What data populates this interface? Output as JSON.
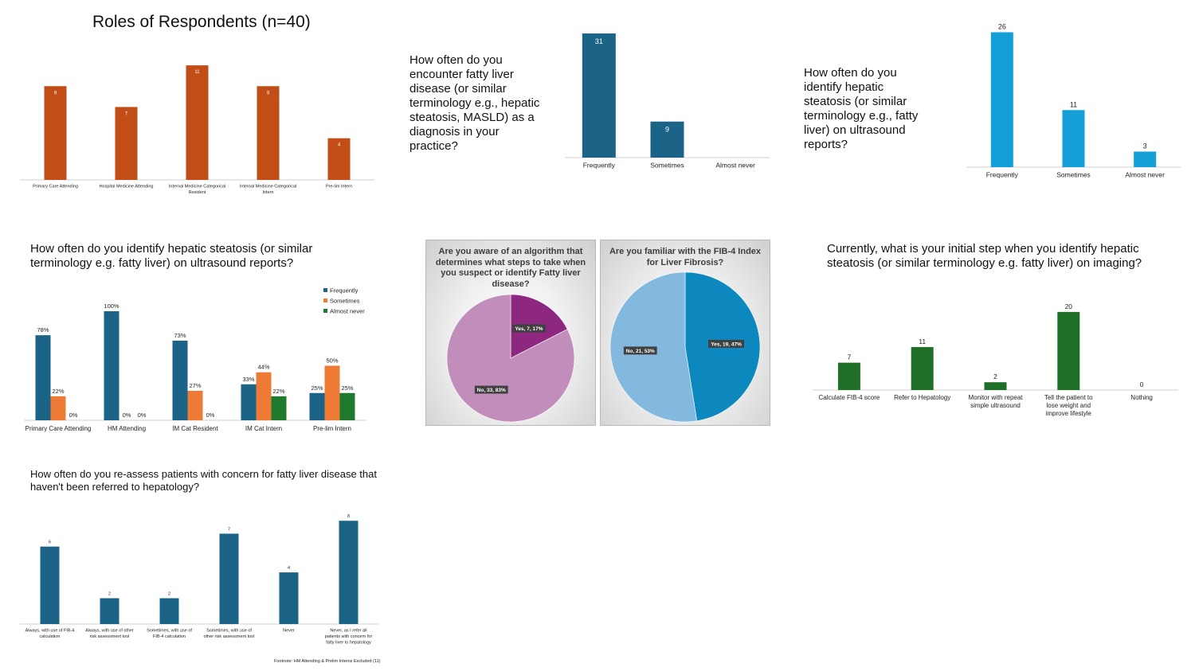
{
  "charts": {
    "roles": {
      "title": "Roles of Respondents (n=40)",
      "chart_data": {
        "type": "bar",
        "title": "Roles of Respondents (n=40)",
        "categories": [
          "Primary Care Attending",
          "Hospital Medicine Attending",
          "Internal Medicine Categorical Resident",
          "Internal Medicine Categorical Intern",
          "Pre-lim Intern"
        ],
        "values": [
          9,
          7,
          11,
          9,
          4
        ],
        "color": "#C24E17",
        "ylim": [
          0,
          12
        ],
        "grid": false
      }
    },
    "encounter": {
      "title": "How often do you encounter fatty liver disease (or similar terminology e.g., hepatic steatosis, MASLD) as a diagnosis in your practice?",
      "chart_data": {
        "type": "bar",
        "categories": [
          "Frequently",
          "Sometimes",
          "Almost never"
        ],
        "values": [
          31,
          9,
          0
        ],
        "color": "#1B6387",
        "ylim": [
          0,
          32
        ],
        "grid": false
      }
    },
    "identify": {
      "title": "How often do you identify hepatic steatosis (or similar terminology e.g., fatty liver) on ultrasound reports?",
      "chart_data": {
        "type": "bar",
        "categories": [
          "Frequently",
          "Sometimes",
          "Almost never"
        ],
        "values": [
          26,
          11,
          3
        ],
        "color": "#159FD7",
        "ylim": [
          0,
          27
        ],
        "grid": false
      }
    },
    "grouped": {
      "title": "How often do you identify hepatic steatosis (or similar terminology e.g. fatty liver) on ultrasound reports?",
      "chart_data": {
        "type": "bar",
        "categories": [
          "Primary Care Attending",
          "HM Attending",
          "IM Cat Resident",
          "IM Cat Intern",
          "Pre-lim Intern"
        ],
        "series": [
          {
            "name": "Frequently",
            "values": [
              78,
              100,
              73,
              33,
              25
            ],
            "color": "#1B6387"
          },
          {
            "name": "Sometimes",
            "values": [
              22,
              0,
              27,
              44,
              50
            ],
            "color": "#EE7B35"
          },
          {
            "name": "Almost never",
            "values": [
              0,
              0,
              0,
              22,
              25
            ],
            "color": "#1F7A2D"
          }
        ],
        "unit": "%",
        "ylim": [
          0,
          105
        ],
        "legend": "top-right",
        "grid": false
      }
    },
    "pie_algorithm": {
      "title": "Are you aware of an algorithm that determines what steps to take when you suspect or identify Fatty liver disease?",
      "chart_data": {
        "type": "pie",
        "labels": [
          "Yes, 7, 17%",
          "No, 33, 83%"
        ],
        "values": [
          7,
          33
        ],
        "colors": [
          "#8E2780",
          "#C18DBB"
        ]
      }
    },
    "pie_fib4": {
      "title": "Are you familiar with the FIB-4 Index for Liver Fibrosis?",
      "chart_data": {
        "type": "pie",
        "labels": [
          "Yes, 19, 47%",
          "No, 21, 53%"
        ],
        "values": [
          19,
          21
        ],
        "colors": [
          "#0D88BE",
          "#84B9DF"
        ]
      }
    },
    "initial": {
      "title": "Currently, what is your initial step when you identify hepatic steatosis (or similar terminology e.g. fatty liver) on imaging?",
      "chart_data": {
        "type": "bar",
        "categories": [
          "Calculate FIB-4 score",
          "Refer to Hepatology",
          "Monitor with repeat simple ultrasound",
          "Tell the patient to lose weight and improve lifestyle",
          "Nothing"
        ],
        "values": [
          7,
          11,
          2,
          20,
          0
        ],
        "color": "#1F6F28",
        "ylim": [
          0,
          21
        ],
        "grid": false
      }
    },
    "reassess": {
      "title": "How often do you re-assess patients with concern for fatty liver disease that haven't been referred to hepatology?",
      "chart_data": {
        "type": "bar",
        "categories": [
          "Always, with use of FIB-4 calculation",
          "Always, with use of other risk assessment tool",
          "Sometimes, with use of FIB-4 calculation",
          "Sometimes, with use of other risk assessment tool",
          "Never",
          "Never, as I refer all patients with concern for fatty liver to hepatology"
        ],
        "values": [
          6,
          2,
          2,
          7,
          4,
          8
        ],
        "color": "#1B6387",
        "ylim": [
          0,
          8.2
        ],
        "grid": false
      },
      "footnote": "Footnote:  HM Attending & Prelim Interns Excluded (11)"
    }
  }
}
